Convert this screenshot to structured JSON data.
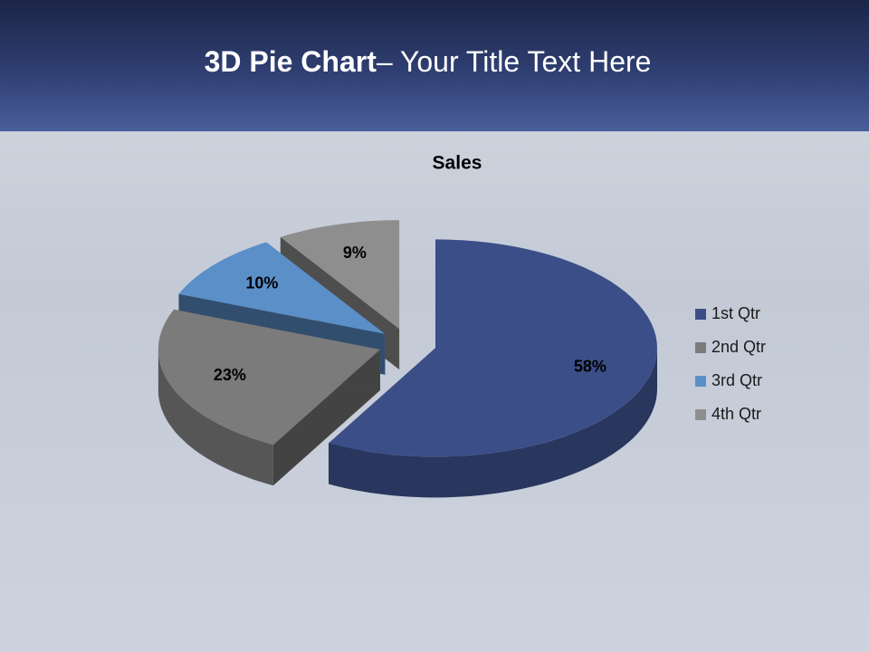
{
  "slide": {
    "title_bold": "3D Pie Chart",
    "title_rest": "– Your Title Text Here"
  },
  "chart_data": {
    "type": "pie",
    "title": "Sales",
    "categories": [
      "1st Qtr",
      "2nd Qtr",
      "3rd Qtr",
      "4th Qtr"
    ],
    "values": [
      58,
      23,
      10,
      9
    ],
    "value_labels": [
      "58%",
      "23%",
      "10%",
      "9%"
    ],
    "colors": [
      "#3b4e87",
      "#7b7b7b",
      "#5b8fc8",
      "#8e8e8e"
    ],
    "legend": "right"
  }
}
